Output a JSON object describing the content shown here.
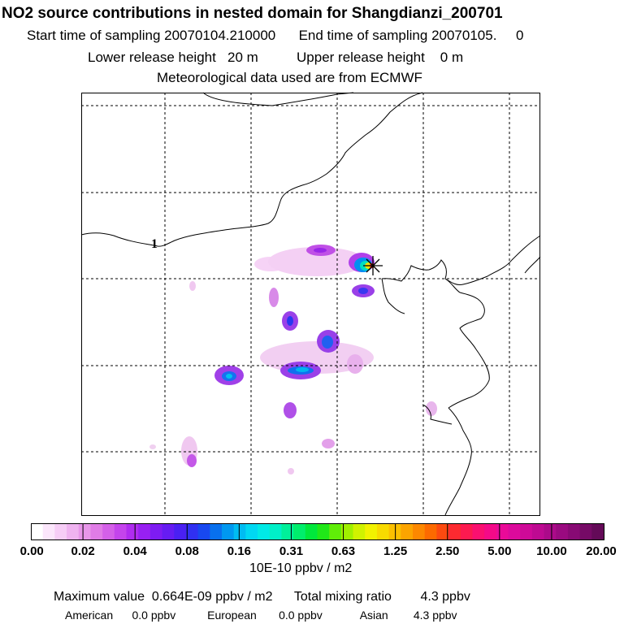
{
  "header": {
    "title": "NO2 source contributions in nested domain for Shangdianzi_200701",
    "start_label": "Start time of sampling",
    "start_value": "20070104.210000",
    "end_label": "End time of sampling",
    "end_value": "20070105.     0",
    "lower_label": "Lower release height",
    "lower_value": "20 m",
    "upper_label": "Upper release height",
    "upper_value": "0 m",
    "met_line": "Meteorological data used are from ECMWF"
  },
  "map": {
    "contour_label": "1",
    "station_marker": "receptor-star"
  },
  "colorbar": {
    "ticks": [
      "0.00",
      "0.02",
      "0.04",
      "0.08",
      "0.16",
      "0.31",
      "0.63",
      "1.25",
      "2.50",
      "5.00",
      "10.00",
      "20.00"
    ],
    "units": "10E-10 ppbv / m2",
    "colors": [
      "#ffffff",
      "#fbe6fb",
      "#f6cdf6",
      "#efb3f0",
      "#e897ea",
      "#e07ce6",
      "#d460e8",
      "#c444ec",
      "#b02cf0",
      "#9820f2",
      "#7e1cf2",
      "#661cf2",
      "#4a20f2",
      "#3030f2",
      "#1848f0",
      "#0870ee",
      "#0098f0",
      "#00bcf2",
      "#00d8f2",
      "#00eae6",
      "#00f0c8",
      "#00f09a",
      "#00ee6c",
      "#00e83c",
      "#20e818",
      "#60ee08",
      "#a0f000",
      "#d0f200",
      "#f2f200",
      "#f8da00",
      "#fbc000",
      "#fca400",
      "#fc8800",
      "#fc6a00",
      "#fc4a10",
      "#fc2a30",
      "#fc1a50",
      "#fa1070",
      "#f40a88",
      "#ea0a98",
      "#dc0a9c",
      "#ce0a98",
      "#be0a92",
      "#ac0a8a",
      "#9a0a80",
      "#880a74",
      "#760a66",
      "#640a58"
    ]
  },
  "summary": {
    "max_label": "Maximum value",
    "max_value": "0.664E-09 ppbv / m2",
    "total_label": "Total mixing ratio",
    "total_value": "4.3 ppbv",
    "regions": [
      {
        "name": "American",
        "value": "0.0 ppbv"
      },
      {
        "name": "European",
        "value": "0.0 ppbv"
      },
      {
        "name": "Asian",
        "value": "4.3 ppbv"
      }
    ]
  }
}
